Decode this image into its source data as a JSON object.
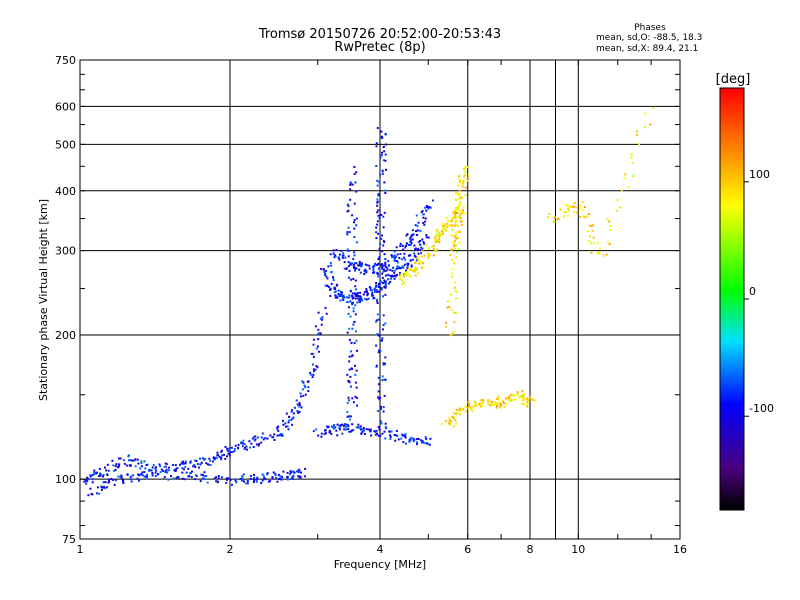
{
  "title": {
    "line1": "Tromsø 20150726 20:52:00-20:53:43",
    "line2": "RwPretec (8p)"
  },
  "stats": {
    "header": "Phases",
    "o_line": "mean, sd,O: -88.5, 18.3",
    "x_line": "mean, sd,X:  89.4, 21.1"
  },
  "colorbar": {
    "unit_label": "[deg]",
    "tick_labels": [
      "100",
      "0",
      "-100"
    ],
    "tick_values": [
      100,
      0,
      -100
    ],
    "range": [
      -180,
      180
    ]
  },
  "chart_data": {
    "type": "scatter",
    "title": "Tromsø 20150726 20:52:00-20:53:43",
    "subtitle": "RwPretec (8p)",
    "xlabel": "Frequency [MHz]",
    "ylabel": "Stationary phase Virtual Height [km]",
    "xscale": "log",
    "yscale": "log",
    "xlim": [
      1,
      16
    ],
    "ylim": [
      75,
      750
    ],
    "xticks": [
      1,
      2,
      4,
      6,
      8,
      10,
      16
    ],
    "xtick_labels": [
      "1",
      "2",
      "4",
      "6",
      "8",
      "10",
      "16"
    ],
    "xgrid": [
      2,
      4,
      6,
      8,
      9,
      10
    ],
    "yticks": [
      75,
      100,
      200,
      300,
      400,
      500,
      600,
      750
    ],
    "ytick_labels": [
      "75",
      "100",
      "200",
      "300",
      "400",
      "500",
      "600",
      "750"
    ],
    "ygrid": [
      100,
      200,
      300,
      400,
      500,
      600
    ],
    "grid": true,
    "color_variable": "phase [deg]",
    "series": [
      {
        "polarization": "O",
        "phase_mean": -88.5,
        "traces": [
          {
            "x": [
              1.0,
              1.1,
              1.25,
              1.4,
              1.6,
              1.8,
              2.0,
              2.2,
              2.5,
              2.7,
              2.9,
              3.05
            ],
            "y": [
              98,
              104,
              110,
              105,
              107,
              110,
              115,
              120,
              125,
              140,
              170,
              230
            ]
          },
          {
            "x": [
              1.05,
              1.2,
              1.4,
              1.7,
              2.0,
              2.3,
              2.6,
              2.8
            ],
            "y": [
              95,
              100,
              103,
              102,
              100,
              101,
              102,
              104
            ]
          },
          {
            "x": [
              3.1,
              3.2,
              3.4,
              3.6,
              3.8,
              4.0,
              4.3,
              4.6,
              4.9
            ],
            "y": [
              280,
              250,
              240,
              240,
              245,
              255,
              270,
              290,
              320
            ]
          },
          {
            "x": [
              3.2,
              3.5,
              3.8,
              4.1,
              4.4,
              4.7,
              5.0
            ],
            "y": [
              300,
              280,
              275,
              280,
              300,
              330,
              380
            ]
          },
          {
            "x": [
              3.0,
              3.3,
              3.6,
              4.0,
              4.5,
              5.0
            ],
            "y": [
              125,
              128,
              128,
              126,
              122,
              120
            ]
          },
          {
            "x": [
              4.0,
              4.0,
              4.0,
              4.0,
              4.0,
              4.0
            ],
            "y": [
              130,
              180,
              250,
              330,
              430,
              550
            ]
          },
          {
            "x": [
              3.5,
              3.5,
              3.5,
              3.5,
              3.5
            ],
            "y": [
              130,
              170,
              230,
              320,
              450
            ]
          }
        ]
      },
      {
        "polarization": "X",
        "phase_mean": 89.4,
        "traces": [
          {
            "x": [
              4.4,
              4.7,
              5.0,
              5.3,
              5.6,
              5.8
            ],
            "y": [
              260,
              275,
              300,
              330,
              350,
              370
            ]
          },
          {
            "x": [
              5.5,
              5.6,
              5.7,
              5.8,
              5.9
            ],
            "y": [
              200,
              300,
              350,
              400,
              450
            ]
          },
          {
            "x": [
              5.4,
              5.8,
              6.4,
              6.9,
              7.5,
              8.0
            ],
            "y": [
              130,
              140,
              145,
              145,
              150,
              145
            ]
          },
          {
            "x": [
              8.8,
              10.0,
              11.0,
              14.0
            ],
            "y": [
              350,
              380,
              290,
              610
            ]
          }
        ]
      }
    ]
  }
}
